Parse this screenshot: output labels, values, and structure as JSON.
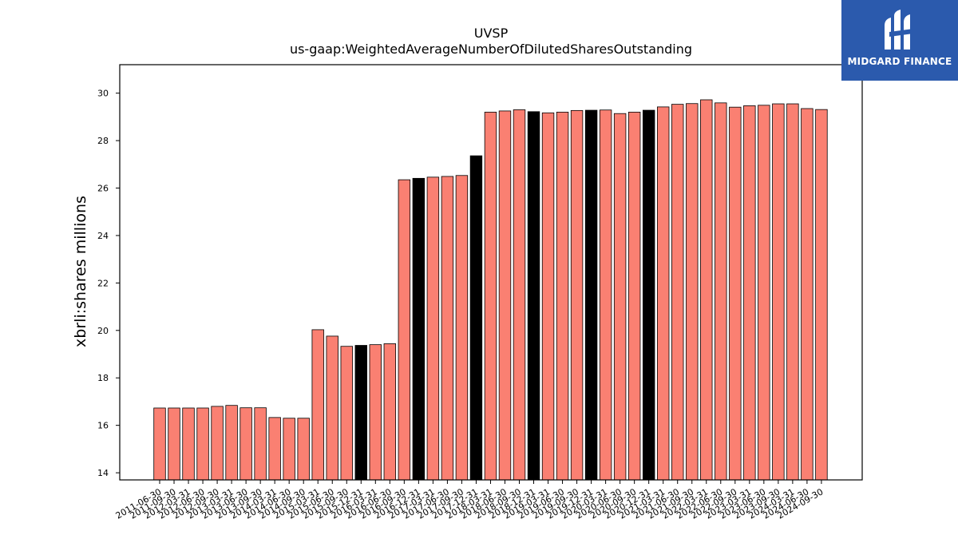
{
  "chart_data": {
    "type": "bar",
    "title": "UVSP",
    "subtitle": "us-gaap:WeightedAverageNumberOfDilutedSharesOutstanding",
    "ylabel": "xbrli:shares millions",
    "xlabel": "",
    "ylim": [
      13.7,
      31.2
    ],
    "yticks": [
      14,
      16,
      18,
      20,
      22,
      24,
      26,
      28,
      30
    ],
    "grid": false,
    "colors": {
      "default": "#fa8072",
      "highlight": "#000000",
      "edge": "#000000"
    },
    "categories": [
      "2011-06-30",
      "2011-09-30",
      "2012-03-31",
      "2012-06-30",
      "2012-09-30",
      "2013-03-31",
      "2013-06-30",
      "2013-09-30",
      "2014-03-31",
      "2014-06-30",
      "2014-09-30",
      "2015-03-31",
      "2015-06-30",
      "2015-09-30",
      "2015-12-31",
      "2016-03-31",
      "2016-06-30",
      "2016-09-30",
      "2016-12-31",
      "2017-03-31",
      "2017-06-30",
      "2017-09-30",
      "2017-12-31",
      "2018-03-31",
      "2018-06-30",
      "2018-09-30",
      "2018-12-31",
      "2019-03-31",
      "2019-06-30",
      "2019-09-30",
      "2019-12-31",
      "2020-03-31",
      "2020-06-30",
      "2020-09-30",
      "2020-12-31",
      "2021-03-31",
      "2021-06-30",
      "2021-09-30",
      "2022-03-31",
      "2022-06-30",
      "2022-09-30",
      "2023-03-31",
      "2023-06-30",
      "2023-09-30",
      "2024-03-31",
      "2024-06-30",
      "2024-09-30"
    ],
    "values": [
      16.73,
      16.73,
      16.73,
      16.73,
      16.8,
      16.84,
      16.74,
      16.74,
      16.33,
      16.3,
      16.3,
      20.03,
      19.76,
      19.33,
      19.37,
      19.4,
      19.44,
      26.35,
      26.41,
      26.46,
      26.49,
      26.53,
      27.36,
      29.2,
      29.25,
      29.3,
      29.22,
      29.17,
      29.2,
      29.27,
      29.28,
      29.29,
      29.14,
      29.2,
      29.28,
      29.42,
      29.53,
      29.56,
      29.72,
      29.59,
      29.41,
      29.47,
      29.49,
      29.55,
      29.55,
      29.35,
      29.31
    ],
    "highlight_indices": [
      14,
      18,
      22,
      26,
      30,
      34
    ]
  },
  "logo": {
    "text": "MIDGARD FINANCE",
    "icon": "midgard-logo-icon",
    "background": "#2b5aad"
  }
}
